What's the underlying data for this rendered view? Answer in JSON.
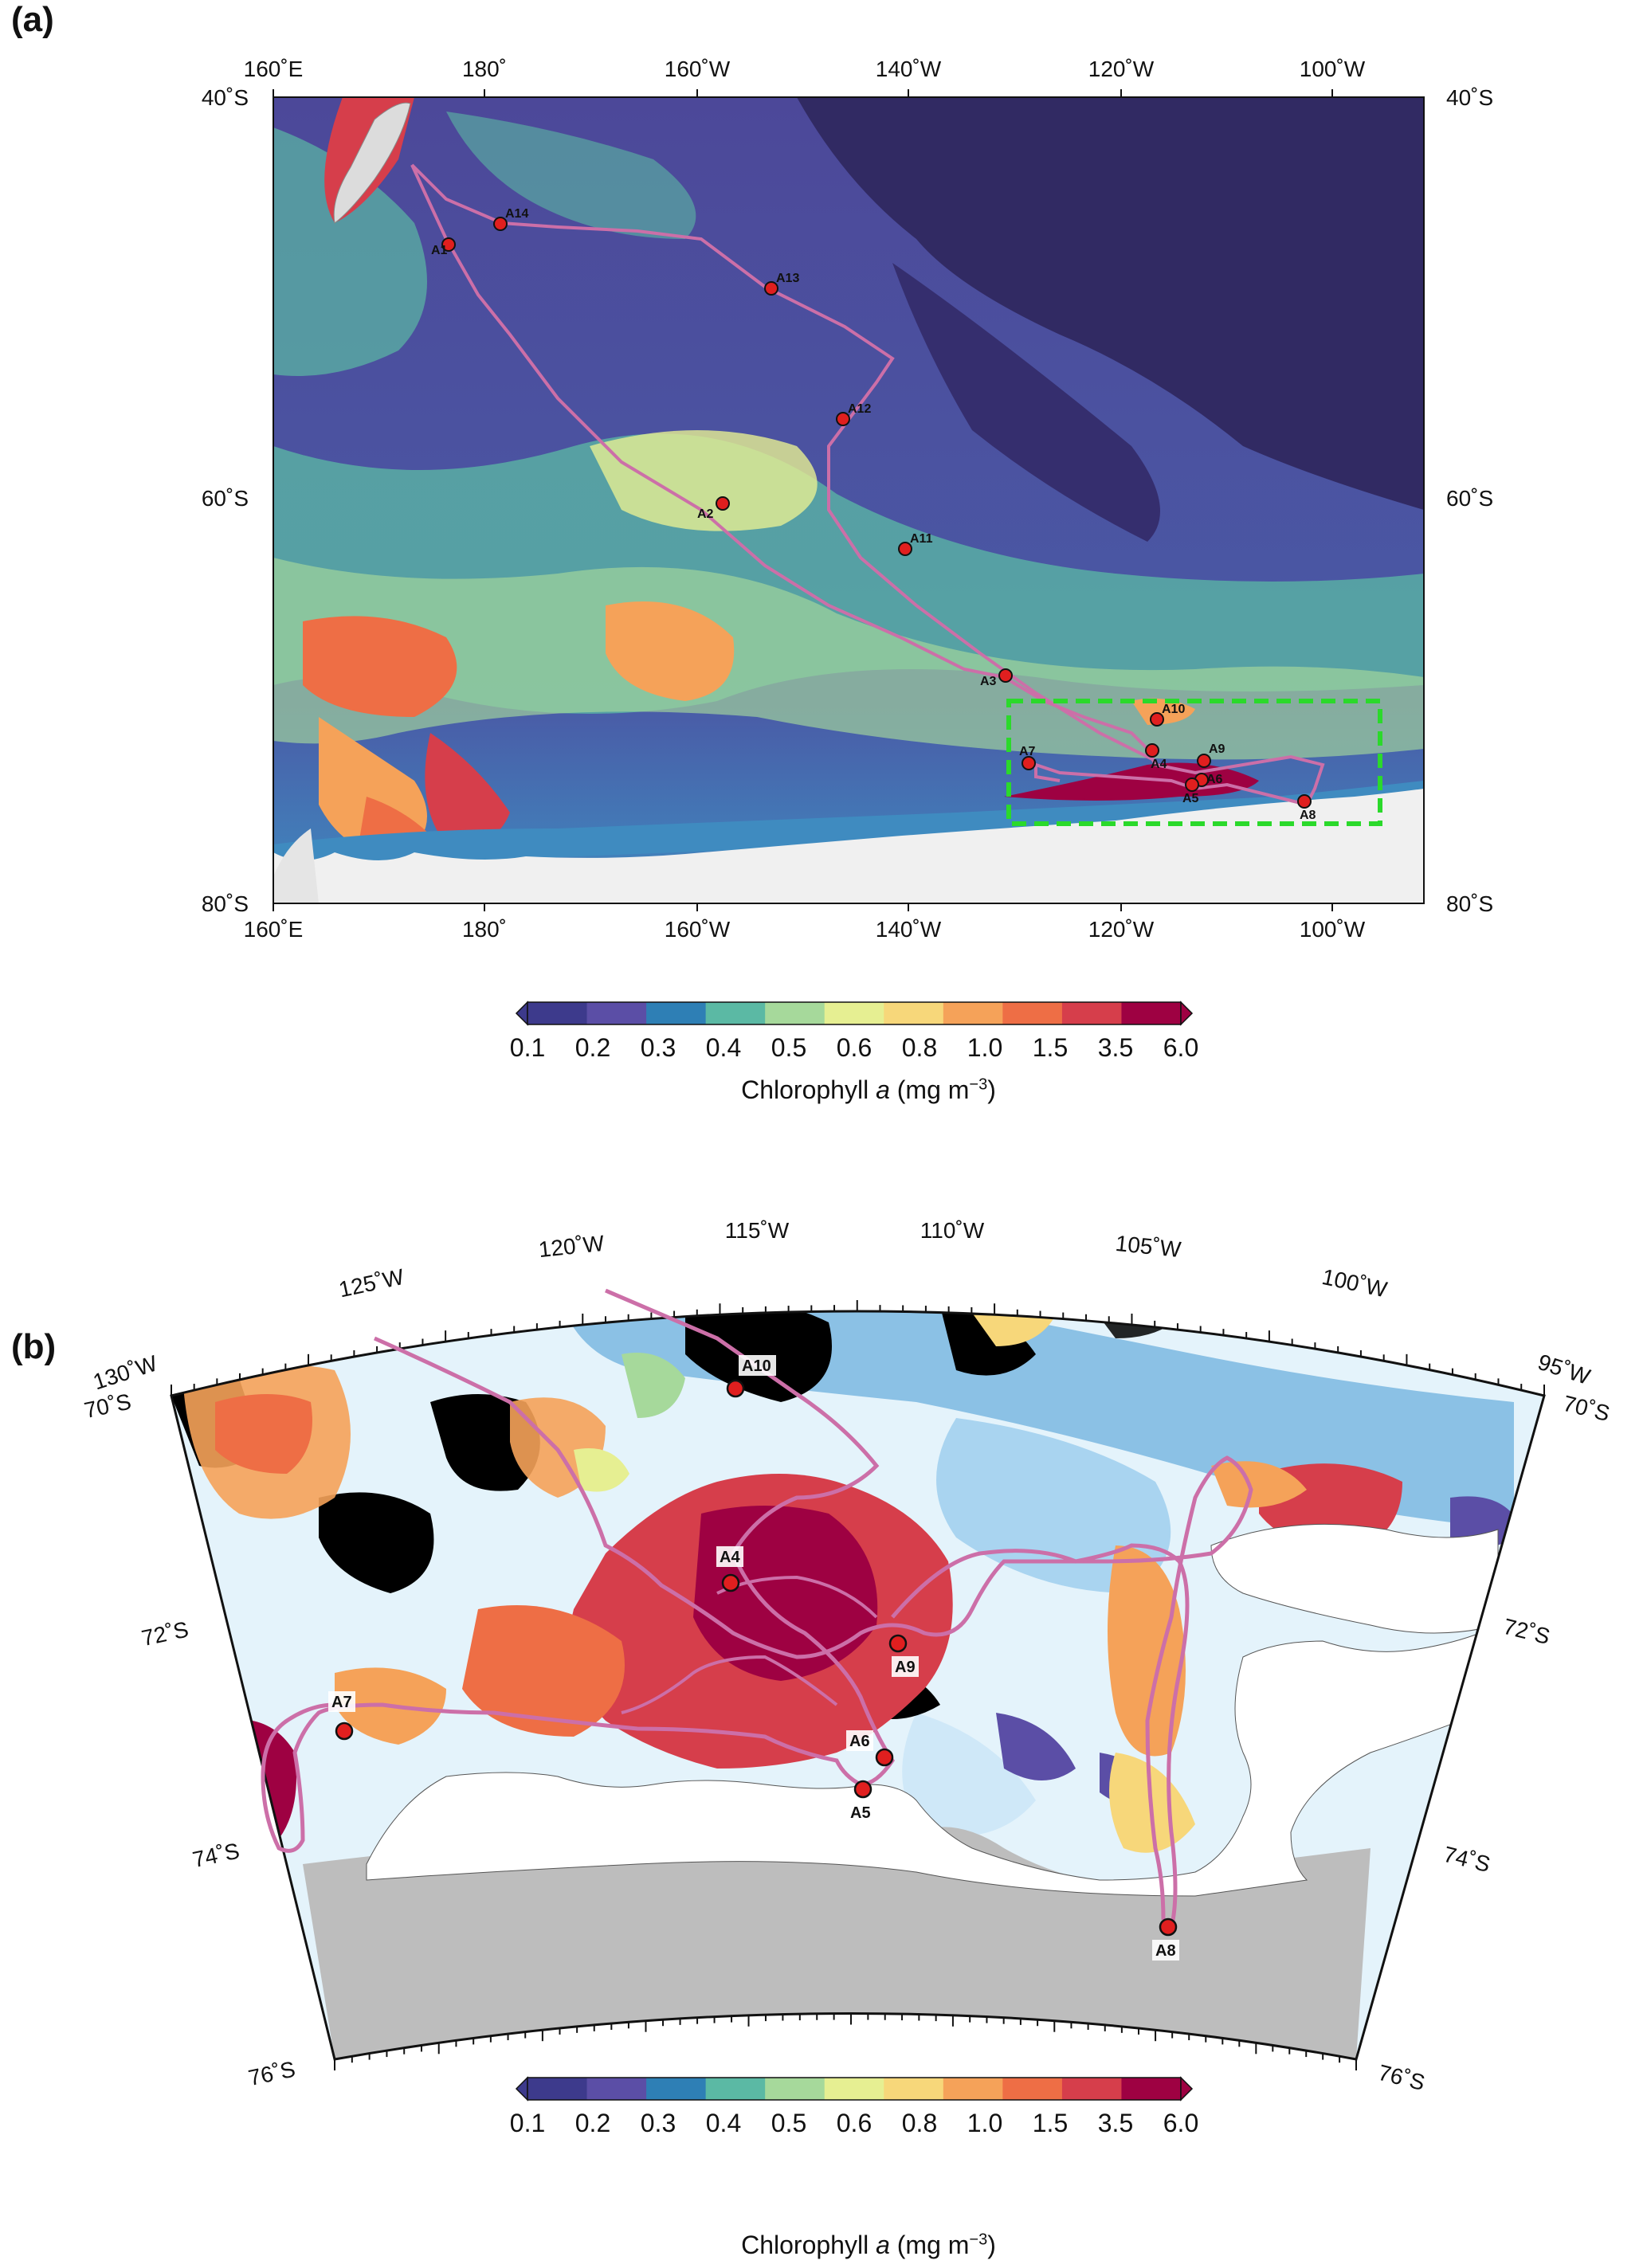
{
  "panel_a": {
    "letter": "(a)",
    "lon_ticks": [
      "160˚E",
      "180˚",
      "160˚W",
      "140˚W",
      "120˚W",
      "100˚W"
    ],
    "lat_ticks": [
      "40˚S",
      "60˚S",
      "80˚S"
    ],
    "stations": [
      {
        "id": "A1"
      },
      {
        "id": "A14"
      },
      {
        "id": "A13"
      },
      {
        "id": "A12"
      },
      {
        "id": "A2"
      },
      {
        "id": "A11"
      },
      {
        "id": "A3"
      },
      {
        "id": "A10"
      },
      {
        "id": "A4"
      },
      {
        "id": "A9"
      },
      {
        "id": "A7"
      },
      {
        "id": "A6"
      },
      {
        "id": "A5"
      },
      {
        "id": "A8"
      }
    ]
  },
  "colorbar_a": {
    "ticks": [
      "0.1",
      "0.2",
      "0.3",
      "0.4",
      "0.5",
      "0.6",
      "0.8",
      "1.0",
      "1.5",
      "3.5",
      "6.0"
    ],
    "label_prefix": "Chlorophyll ",
    "label_var": "a",
    "label_units": " (mg m",
    "label_exp": "−3",
    "label_close": ")"
  },
  "panel_b": {
    "letter": "(b)",
    "lon_ticks": [
      "130˚W",
      "125˚W",
      "120˚W",
      "115˚W",
      "110˚W",
      "105˚W",
      "100˚W",
      "95˚W"
    ],
    "lat_ticks_left": [
      "70˚S",
      "72˚S",
      "74˚S",
      "76˚S"
    ],
    "lat_ticks_right": [
      "70˚S",
      "72˚S",
      "74˚S",
      "76˚S"
    ],
    "stations": [
      {
        "id": "A10"
      },
      {
        "id": "A4"
      },
      {
        "id": "A9"
      },
      {
        "id": "A7"
      },
      {
        "id": "A6"
      },
      {
        "id": "A5"
      },
      {
        "id": "A8"
      }
    ]
  },
  "colorbar_b": {
    "ticks": [
      "0.1",
      "0.2",
      "0.3",
      "0.4",
      "0.5",
      "0.6",
      "0.8",
      "1.0",
      "1.5",
      "3.5",
      "6.0"
    ],
    "label_prefix": "Chlorophyll ",
    "label_var": "a",
    "label_units": " (mg m",
    "label_exp": "−3",
    "label_close": ")"
  },
  "colors": {
    "scale": [
      "#3d3a8c",
      "#5b4ea6",
      "#2e7fb5",
      "#5bb9a4",
      "#a6d99b",
      "#e6ef92",
      "#f7d77a",
      "#f5a259",
      "#ee6e45",
      "#d63e4b",
      "#9e0142"
    ],
    "ocean_low": "#4e4a9c",
    "ocean_dark": "#312a63",
    "track": "#cc6fa8",
    "station_fill": "#e01f1f",
    "box": "#2bd92b",
    "land_b": "#bdbdbd",
    "ice": "#ffffff"
  }
}
